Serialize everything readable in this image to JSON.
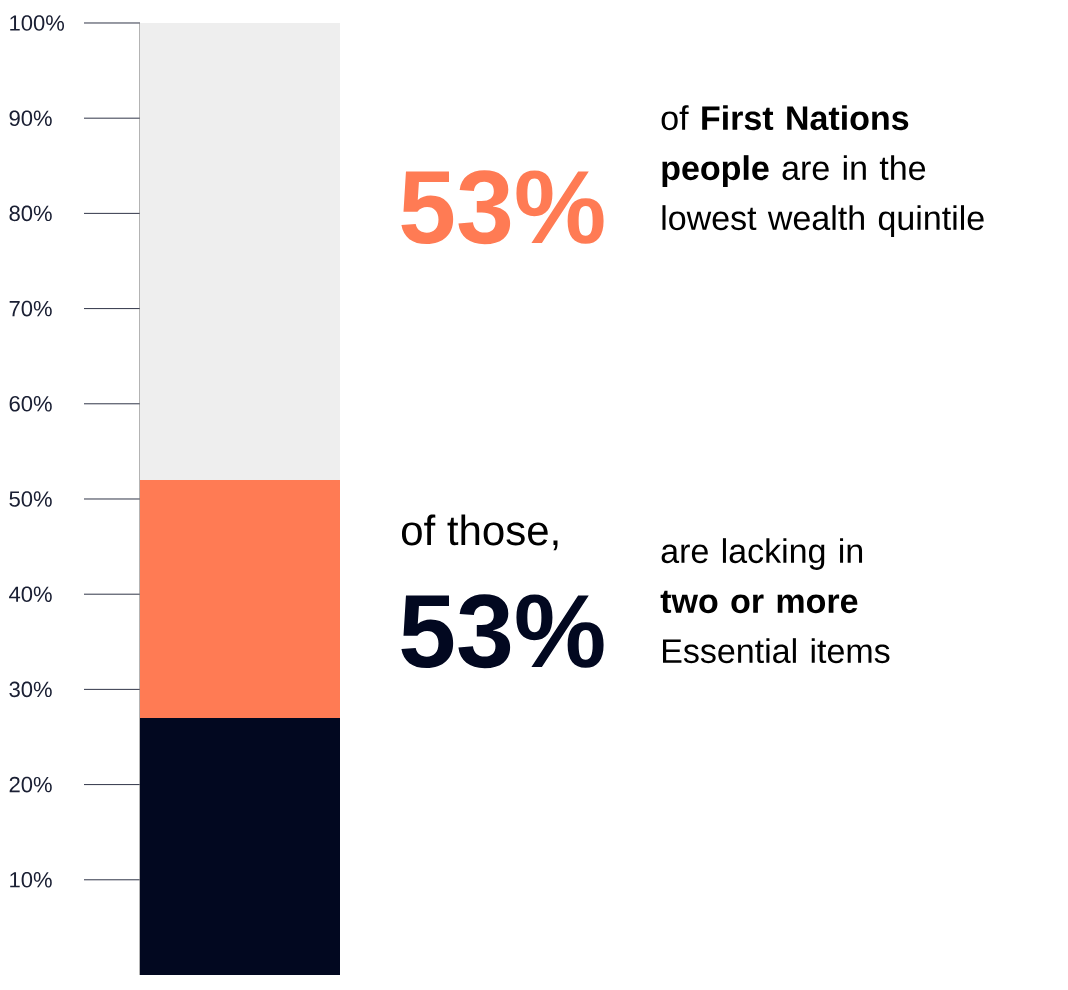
{
  "chart_data": {
    "type": "bar",
    "stacked": true,
    "categories": [
      null
    ],
    "series": [
      {
        "color": "#020820",
        "values": [
          27
        ]
      },
      {
        "color": "#ff7b54",
        "values": [
          25
        ]
      },
      {
        "color": "#eeeeee",
        "values": [
          48
        ]
      }
    ],
    "ylim": [
      0,
      100
    ],
    "yticks": [
      {
        "value": 10,
        "label": "10%"
      },
      {
        "value": 20,
        "label": "20%"
      },
      {
        "value": 30,
        "label": "30%"
      },
      {
        "value": 40,
        "label": "40%"
      },
      {
        "value": 50,
        "label": "50%"
      },
      {
        "value": 60,
        "label": "60%"
      },
      {
        "value": 70,
        "label": "70%"
      },
      {
        "value": 80,
        "label": "80%"
      },
      {
        "value": 90,
        "label": "90%"
      },
      {
        "value": 100,
        "label": "100%"
      }
    ],
    "annotations": [
      "53%",
      "of **First Nations people** are in the lowest wealth quintile",
      "of those,",
      "53%",
      "are lacking in **two or more** Essential items"
    ]
  }
}
